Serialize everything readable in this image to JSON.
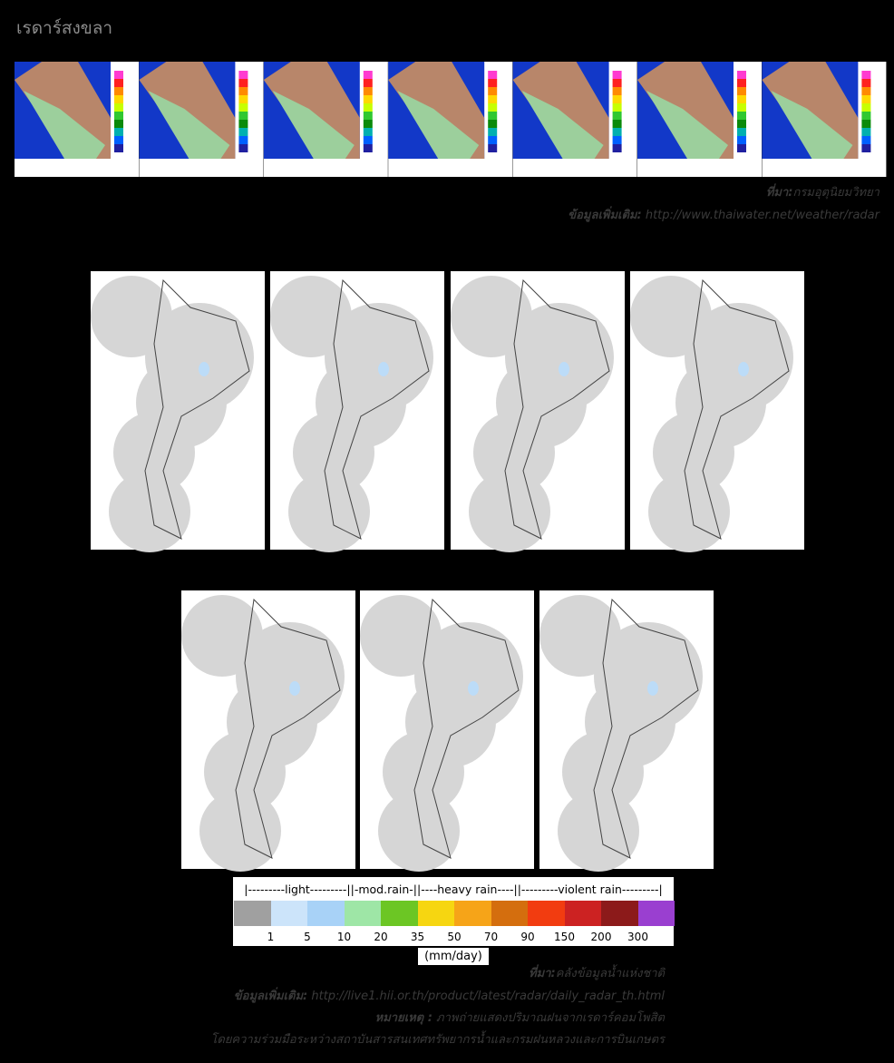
{
  "header": {
    "title": "เรดาร์สงขลา"
  },
  "section1": {
    "source_label": "ที่มา:",
    "source": "กรมอุตุนิยมวิทยา",
    "more_label": "ข้อมูลเพิ่มเติม:",
    "more": "http://www.thaiwater.net/weather/radar"
  },
  "legend": {
    "header": "|---------light---------||-mod.rain-||----heavy rain----||---------violent rain---------|",
    "colors": [
      "#a0a0a0",
      "#cce4fa",
      "#a8d2f7",
      "#9ee6a6",
      "#6cc624",
      "#f6d611",
      "#f6a418",
      "#d46e0e",
      "#f23c10",
      "#cc2222",
      "#8c1a1a",
      "#9a3fd0"
    ],
    "ticks": [
      1,
      5,
      10,
      20,
      35,
      50,
      70,
      90,
      150,
      200,
      300
    ],
    "unit": "(mm/day)"
  },
  "section2": {
    "source_label": "ที่มา:",
    "source": "คลังข้อมูลน้ำแห่งชาติ",
    "more_label": "ข้อมูลเพิ่มเติม:",
    "more": "http://live1.hii.or.th/product/latest/radar/daily_radar_th.html",
    "note_label": "หมายเหตุ :",
    "note": "ภาพถ่ายแสดงปริมาณฝนจากเรดาร์คอมโพสิต",
    "credit": "โดยความร่วมมือระหว่างสถาบันสารสนเทศทรัพยากรน้ำและกรมฝนหลวงและการบินเกษตร"
  }
}
